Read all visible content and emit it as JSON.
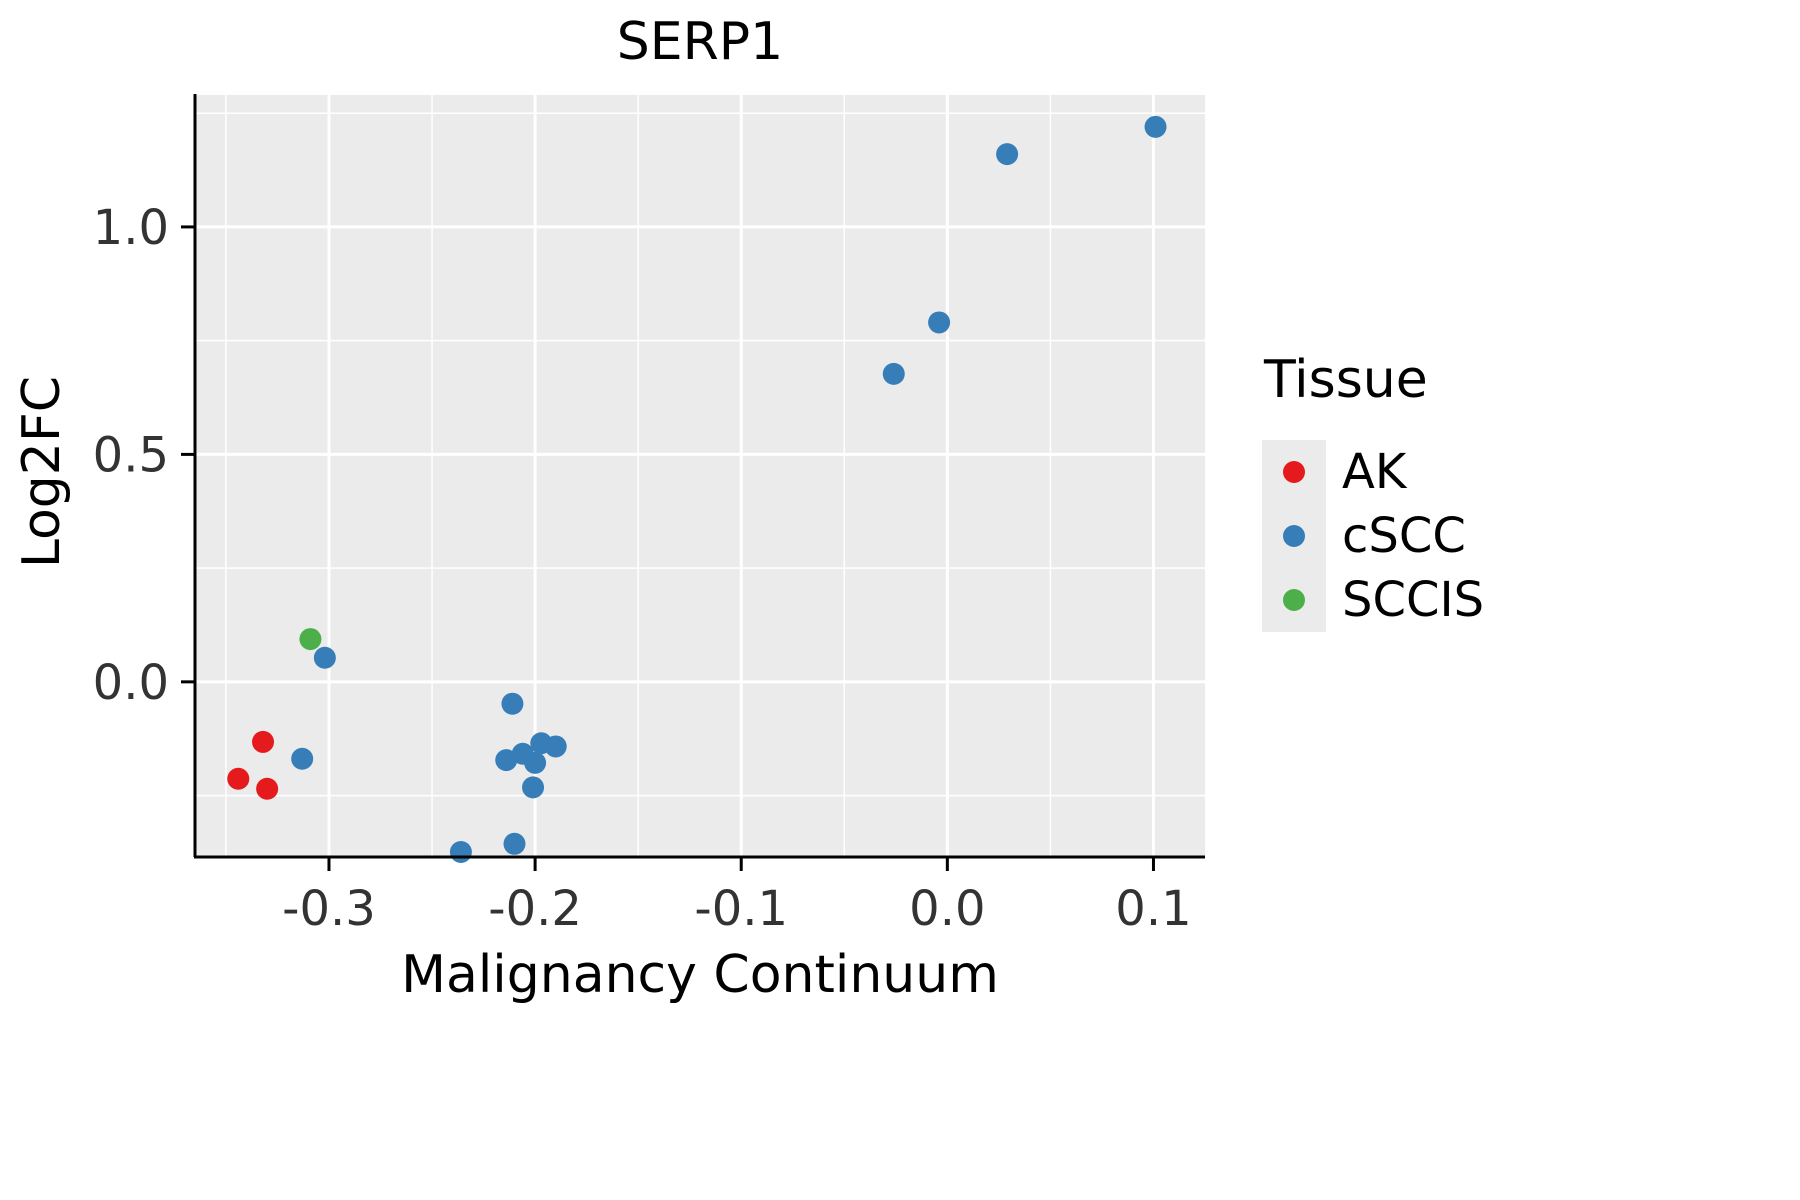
{
  "chart_data": {
    "type": "scatter",
    "title": "SERP1",
    "xlabel": "Malignancy Continuum",
    "ylabel": "Log2FC",
    "xlim": [
      -0.365,
      0.125
    ],
    "ylim": [
      -0.385,
      1.29
    ],
    "x_ticks": [
      -0.3,
      -0.2,
      -0.1,
      0.0,
      0.1
    ],
    "x_tick_labels": [
      "-0.3",
      "-0.2",
      "-0.1",
      "0.0",
      "0.1"
    ],
    "x_minor_ticks": [
      -0.35,
      -0.25,
      -0.15,
      -0.05,
      0.05
    ],
    "y_ticks": [
      0.0,
      0.5,
      1.0
    ],
    "y_tick_labels": [
      "0.0",
      "0.5",
      "1.0"
    ],
    "y_minor_ticks": [
      -0.25,
      0.25,
      0.75,
      1.25
    ],
    "grid": true,
    "panel_bg": "#EBEBEB",
    "grid_color": "#FFFFFF",
    "axis_color": "#000000",
    "point_radius": 11,
    "legend": {
      "title": "Tissue",
      "position": "right"
    },
    "series": [
      {
        "name": "AK",
        "color": "#E41A1C",
        "points": [
          [
            -0.332,
            -0.132
          ],
          [
            -0.344,
            -0.213
          ],
          [
            -0.33,
            -0.235
          ]
        ]
      },
      {
        "name": "cSCC",
        "color": "#377EB8",
        "points": [
          [
            0.101,
            1.22
          ],
          [
            0.029,
            1.16
          ],
          [
            -0.004,
            0.79
          ],
          [
            -0.026,
            0.677
          ],
          [
            -0.302,
            0.053
          ],
          [
            -0.313,
            -0.169
          ],
          [
            -0.211,
            -0.048
          ],
          [
            -0.197,
            -0.135
          ],
          [
            -0.19,
            -0.142
          ],
          [
            -0.206,
            -0.158
          ],
          [
            -0.214,
            -0.172
          ],
          [
            -0.2,
            -0.178
          ],
          [
            -0.201,
            -0.232
          ],
          [
            -0.21,
            -0.356
          ],
          [
            -0.236,
            -0.374
          ]
        ]
      },
      {
        "name": "SCCIS",
        "color": "#4DAF4A",
        "points": [
          [
            -0.309,
            0.094
          ]
        ]
      }
    ]
  }
}
